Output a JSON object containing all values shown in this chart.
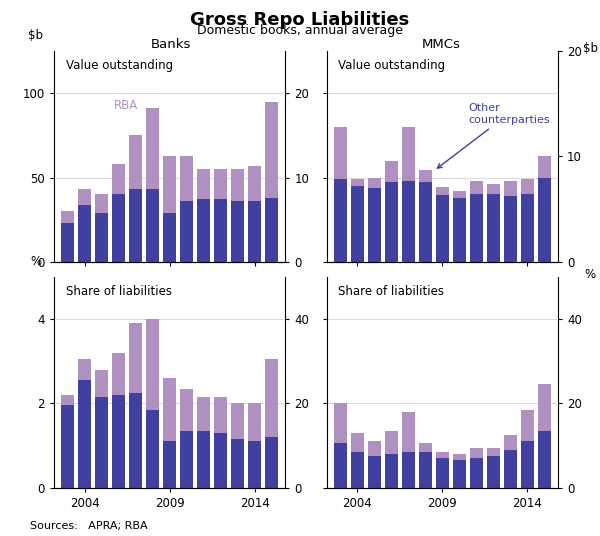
{
  "title": "Gross Repo Liabilities",
  "subtitle": "Domestic books, annual average",
  "col_labels": [
    "Banks",
    "MMCs"
  ],
  "source": "Sources:   APRA; RBA",
  "years": [
    2003,
    2004,
    2005,
    2006,
    2007,
    2008,
    2009,
    2010,
    2011,
    2012,
    2013,
    2014,
    2015
  ],
  "banks_value_dark": [
    23,
    34,
    29,
    40,
    43,
    43,
    29,
    36,
    37,
    37,
    36,
    36,
    38
  ],
  "banks_value_light": [
    7,
    9,
    11,
    18,
    32,
    48,
    34,
    27,
    18,
    18,
    19,
    21,
    57
  ],
  "mmcs_value_dark": [
    9.8,
    9.0,
    8.8,
    9.5,
    9.6,
    9.5,
    7.9,
    7.6,
    8.0,
    8.0,
    7.8,
    8.0,
    10.0
  ],
  "mmcs_value_light": [
    6.2,
    0.8,
    1.2,
    2.5,
    6.4,
    1.4,
    1.0,
    0.8,
    1.6,
    1.2,
    1.8,
    1.8,
    2.6
  ],
  "banks_share_dark": [
    1.95,
    2.55,
    2.15,
    2.2,
    2.25,
    1.85,
    1.1,
    1.35,
    1.35,
    1.3,
    1.15,
    1.1,
    1.2
  ],
  "banks_share_light": [
    0.25,
    0.5,
    0.65,
    1.0,
    1.65,
    2.15,
    1.5,
    1.0,
    0.8,
    0.85,
    0.85,
    0.9,
    1.85
  ],
  "mmcs_share_dark": [
    10.5,
    8.5,
    7.5,
    8.0,
    8.5,
    8.5,
    7.0,
    6.5,
    7.0,
    7.5,
    9.0,
    11.0,
    13.5
  ],
  "mmcs_share_light": [
    9.5,
    4.5,
    3.5,
    5.5,
    9.5,
    2.0,
    1.5,
    1.5,
    2.5,
    2.0,
    3.5,
    7.5,
    11.0
  ],
  "color_dark": "#4040a0",
  "color_light": "#b090c0",
  "banks_value_ylim": [
    0,
    125
  ],
  "banks_value_yticks": [
    0,
    50,
    100
  ],
  "mmcs_value_ylim": [
    0,
    25
  ],
  "mmcs_value_yticks": [
    0,
    10,
    20
  ],
  "banks_share_ylim": [
    0,
    5.0
  ],
  "banks_share_yticks": [
    0,
    2,
    4
  ],
  "mmcs_share_ylim": [
    0,
    50
  ],
  "mmcs_share_yticks": [
    0,
    20,
    40
  ],
  "xticks": [
    2004,
    2009,
    2014
  ],
  "xlim": [
    2002.2,
    2015.8
  ],
  "bar_width": 0.75,
  "subplot_label_tl": "Value outstanding",
  "subplot_label_tr": "Value outstanding",
  "subplot_label_bl": "Share of liabilities",
  "subplot_label_br": "Share of liabilities"
}
